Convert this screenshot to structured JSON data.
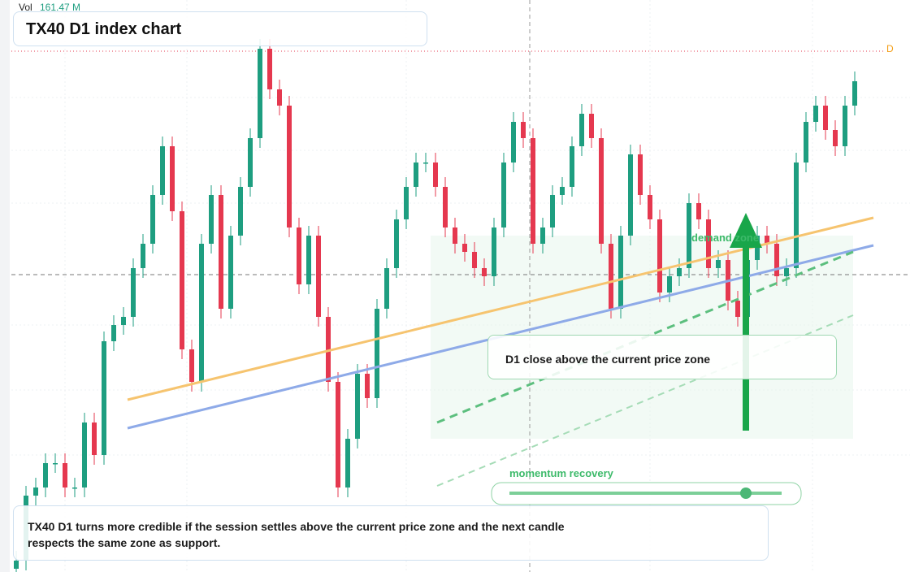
{
  "chart_data": {
    "type": "candlestick",
    "title": "TX40 D1 index chart",
    "volume_label": "Vol",
    "volume_value": "161.47 M",
    "marker_label": "D",
    "annotations": {
      "zone": "demand zone",
      "callout": "D1 close above the current price zone",
      "momentum": "momentum recovery",
      "note": "TX40 D1 turns more credible if the session settles above the current price zone and the next candle respects the same zone as support."
    },
    "open": [
      4,
      14,
      94,
      104,
      134,
      134,
      104,
      104,
      184,
      144,
      284,
      304,
      314,
      374,
      404,
      464,
      524,
      444,
      274,
      234,
      404,
      464,
      324,
      414,
      474,
      534,
      644,
      594,
      574,
      424,
      354,
      414,
      314,
      234,
      104,
      164,
      244,
      214,
      324,
      374,
      434,
      474,
      504,
      504,
      474,
      424,
      404,
      394,
      374,
      364,
      424,
      504,
      554,
      534,
      404,
      424,
      464,
      474,
      524,
      564,
      534,
      404,
      324,
      414,
      514,
      464,
      434,
      344,
      364,
      374,
      454,
      434,
      374,
      384,
      334,
      314,
      384,
      414,
      404,
      364,
      374,
      504,
      554,
      574,
      544,
      524,
      574
    ],
    "high": [
      26,
      106,
      116,
      146,
      146,
      146,
      116,
      196,
      196,
      296,
      316,
      326,
      386,
      416,
      476,
      536,
      536,
      456,
      286,
      416,
      476,
      476,
      426,
      486,
      546,
      656,
      656,
      606,
      586,
      436,
      426,
      426,
      326,
      246,
      176,
      256,
      256,
      336,
      386,
      446,
      486,
      516,
      516,
      516,
      486,
      436,
      416,
      406,
      386,
      436,
      516,
      566,
      566,
      546,
      436,
      476,
      486,
      536,
      576,
      576,
      546,
      416,
      426,
      526,
      526,
      476,
      446,
      376,
      386,
      466,
      466,
      446,
      396,
      396,
      346,
      396,
      426,
      426,
      416,
      386,
      516,
      566,
      586,
      586,
      556,
      586,
      616
    ],
    "low": [
      0,
      2,
      82,
      92,
      122,
      92,
      92,
      92,
      132,
      132,
      272,
      292,
      302,
      362,
      392,
      452,
      432,
      262,
      222,
      222,
      392,
      312,
      312,
      402,
      462,
      522,
      582,
      562,
      412,
      342,
      342,
      302,
      222,
      92,
      92,
      152,
      202,
      202,
      312,
      362,
      422,
      462,
      492,
      462,
      412,
      392,
      382,
      362,
      352,
      352,
      412,
      492,
      522,
      392,
      392,
      412,
      452,
      462,
      512,
      522,
      392,
      312,
      312,
      402,
      452,
      422,
      332,
      332,
      352,
      362,
      422,
      362,
      362,
      322,
      302,
      302,
      372,
      392,
      352,
      352,
      362,
      492,
      542,
      532,
      512,
      512,
      562
    ],
    "close": [
      14,
      94,
      104,
      134,
      134,
      104,
      104,
      184,
      144,
      284,
      304,
      314,
      374,
      404,
      464,
      524,
      444,
      274,
      234,
      404,
      464,
      324,
      414,
      474,
      534,
      644,
      594,
      574,
      424,
      354,
      414,
      314,
      234,
      104,
      164,
      244,
      214,
      324,
      374,
      434,
      474,
      504,
      504,
      474,
      424,
      404,
      394,
      374,
      364,
      424,
      504,
      554,
      534,
      404,
      424,
      464,
      474,
      524,
      564,
      534,
      404,
      324,
      414,
      514,
      464,
      434,
      344,
      364,
      374,
      454,
      434,
      374,
      384,
      334,
      314,
      384,
      414,
      404,
      364,
      374,
      504,
      554,
      574,
      544,
      524,
      574,
      604
    ],
    "ylim": [
      0,
      704
    ],
    "up_color": "#1e9e80",
    "down_color": "#e5384f"
  }
}
